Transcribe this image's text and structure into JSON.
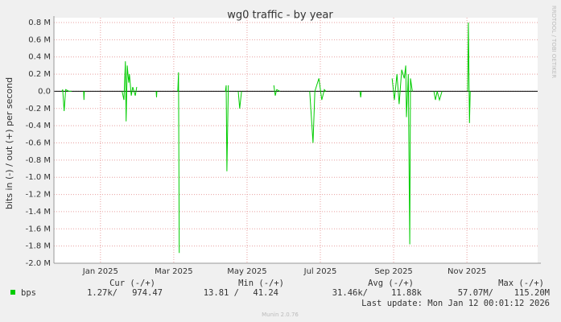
{
  "chart_data": {
    "type": "line",
    "title": "wg0 traffic - by year",
    "y_label": "bits in (-) / out (+) per second",
    "side_note": "RRDTOOL / TOBI OETIKER",
    "grid": true,
    "xlim": [
      -1.27,
      11.93
    ],
    "xticks": [
      {
        "value": 0,
        "label": "Jan 2025"
      },
      {
        "value": 2,
        "label": "Mar 2025"
      },
      {
        "value": 4,
        "label": "May 2025"
      },
      {
        "value": 6,
        "label": "Jul 2025"
      },
      {
        "value": 8,
        "label": "Sep 2025"
      },
      {
        "value": 10,
        "label": "Nov 2025"
      }
    ],
    "ylim": [
      -2.0,
      0.8
    ],
    "yticks": [
      {
        "value": 0.8,
        "label": "0.8 M"
      },
      {
        "value": 0.6,
        "label": "0.6 M"
      },
      {
        "value": 0.4,
        "label": "0.4 M"
      },
      {
        "value": 0.2,
        "label": "0.2 M"
      },
      {
        "value": 0,
        "label": "0.0"
      },
      {
        "value": -0.2,
        "label": "-0.2 M"
      },
      {
        "value": -0.4,
        "label": "-0.4 M"
      },
      {
        "value": -0.6,
        "label": "-0.6 M"
      },
      {
        "value": -0.8,
        "label": "-0.8 M"
      },
      {
        "value": -1.0,
        "label": "-1.0 M"
      },
      {
        "value": -1.2,
        "label": "-1.2 M"
      },
      {
        "value": -1.4,
        "label": "-1.4 M"
      },
      {
        "value": -1.6,
        "label": "-1.6 M"
      },
      {
        "value": -1.8,
        "label": "-1.8 M"
      },
      {
        "value": -2.0,
        "label": "-2.0 M"
      }
    ],
    "series": [
      {
        "name": "bps",
        "color": "#00cc00",
        "x": [
          -1.05,
          -1.03,
          -0.99,
          -0.95,
          -0.86,
          -0.79,
          null,
          -0.46,
          -0.45,
          -0.44,
          null,
          0.59,
          0.64,
          0.68,
          0.7,
          0.73,
          0.77,
          0.79,
          0.84,
          0.88,
          0.95,
          0.99,
          null,
          1.52,
          1.53,
          1.54,
          null,
          2.11,
          2.13,
          2.15,
          null,
          3.41,
          3.43,
          3.45,
          3.49,
          null,
          3.76,
          3.8,
          3.85,
          null,
          4.73,
          4.77,
          4.81,
          4.9,
          null,
          5.71,
          5.8,
          5.85,
          5.96,
          6.04,
          6.11,
          6.15,
          null,
          7.08,
          7.1,
          7.12,
          null,
          7.96,
          8.02,
          8.09,
          8.15,
          8.22,
          8.29,
          8.33,
          8.35,
          8.4,
          8.42,
          8.44,
          8.46,
          8.51,
          null,
          9.1,
          9.14,
          9.19,
          9.25,
          9.32,
          null,
          10.02,
          10.04,
          10.07,
          10.09
        ],
        "values": [
          0,
          0.02,
          -0.23,
          0.02,
          0,
          0,
          null,
          0,
          -0.1,
          0,
          null,
          0,
          -0.1,
          0.35,
          -0.35,
          0.3,
          0.1,
          0.2,
          -0.05,
          0.05,
          -0.05,
          0.05,
          null,
          0,
          -0.07,
          0,
          null,
          0,
          0.22,
          -1.88,
          null,
          0,
          0.07,
          -0.93,
          0.07,
          null,
          0,
          -0.2,
          0,
          null,
          0.07,
          -0.05,
          0.02,
          0,
          null,
          0,
          -0.6,
          0,
          0.15,
          -0.1,
          0.02,
          0,
          null,
          0,
          -0.07,
          0,
          null,
          0.15,
          -0.1,
          0.2,
          -0.15,
          0.25,
          0.15,
          0.3,
          -0.3,
          0.2,
          -0.85,
          -1.78,
          0.15,
          0,
          null,
          0,
          -0.1,
          0,
          -0.1,
          0,
          null,
          0,
          0.8,
          -0.37,
          0
        ]
      }
    ],
    "legend_table": {
      "headers": [
        "Cur (-/+)",
        "Min (-/+)",
        "Avg (-/+)",
        "Max (-/+)"
      ],
      "row": [
        "1.27k/",
        "974.47",
        "13.81 /",
        "41.24",
        "31.46k/",
        "11.88k",
        "57.07M/",
        "115.20M"
      ]
    },
    "last_update": "Last update: Mon Jan 12 00:01:12 2026",
    "footer": "Munin 2.0.76"
  }
}
